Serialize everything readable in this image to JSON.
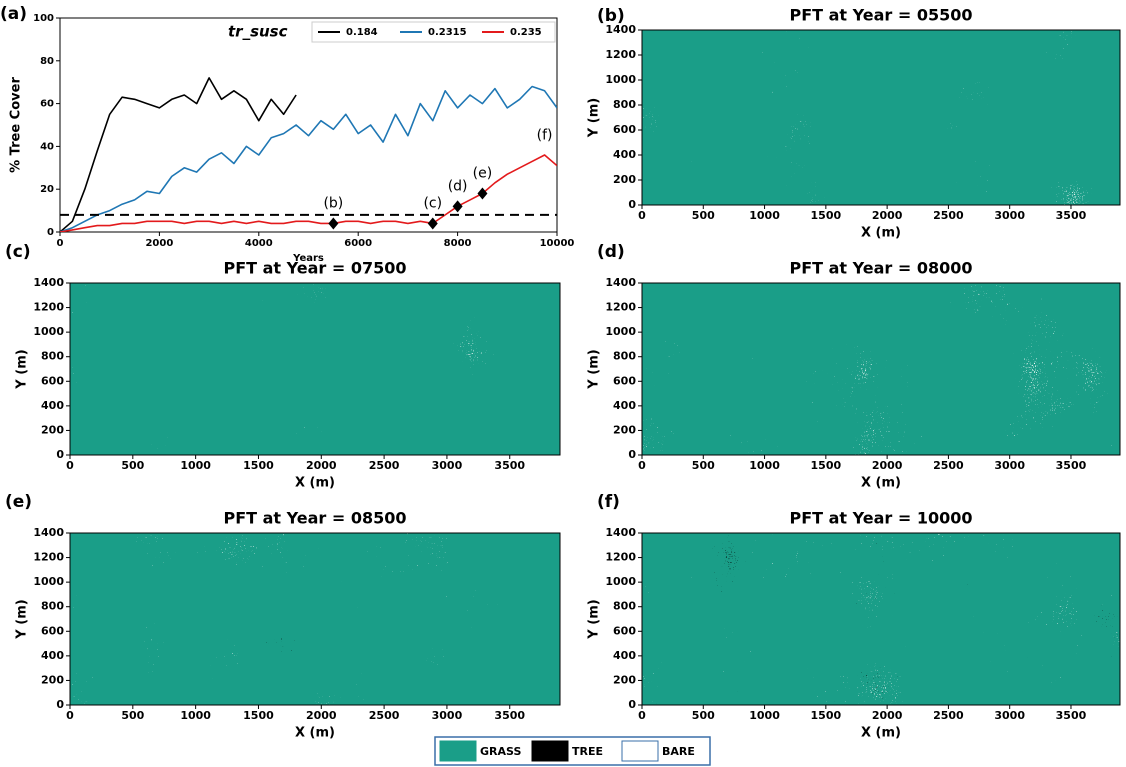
{
  "chart_data": [
    {
      "type": "line",
      "panel_label": "(a)",
      "xlabel": "Years",
      "ylabel": "% Tree Cover",
      "xlim": [
        0,
        10000
      ],
      "xticks": [
        0,
        2000,
        4000,
        6000,
        8000,
        10000
      ],
      "ylim": [
        0,
        100
      ],
      "yticks": [
        0,
        20,
        40,
        60,
        80,
        100
      ],
      "legend_title": "tr_susc",
      "x": [
        0,
        250,
        500,
        750,
        1000,
        1250,
        1500,
        1750,
        2000,
        2250,
        2500,
        2750,
        3000,
        3250,
        3500,
        3750,
        4000,
        4250,
        4500,
        4750,
        5000,
        5250,
        5500,
        5750,
        6000,
        6250,
        6500,
        6750,
        7000,
        7250,
        7500,
        7750,
        8000,
        8250,
        8500,
        8750,
        9000,
        9250,
        9500,
        9750,
        10000
      ],
      "series": [
        {
          "name": "0.184",
          "color": "#000000",
          "values": [
            0,
            5,
            20,
            38,
            55,
            63,
            62,
            60,
            58,
            62,
            64,
            60,
            72,
            62,
            66,
            62,
            52,
            62,
            55,
            64,
            null,
            null,
            null,
            null,
            null,
            null,
            null,
            null,
            null,
            null,
            null,
            null,
            null,
            null,
            null,
            null,
            null,
            null,
            null,
            null,
            null
          ]
        },
        {
          "name": "0.2315",
          "color": "#1f77b4",
          "values": [
            0,
            2,
            5,
            8,
            10,
            13,
            15,
            19,
            18,
            26,
            30,
            28,
            34,
            37,
            32,
            40,
            36,
            44,
            46,
            50,
            45,
            52,
            48,
            55,
            46,
            50,
            42,
            55,
            45,
            60,
            52,
            66,
            58,
            64,
            60,
            67,
            58,
            62,
            68,
            66,
            58
          ]
        },
        {
          "name": "0.235",
          "color": "#e31a1c",
          "values": [
            0,
            1,
            2,
            3,
            3,
            4,
            4,
            5,
            5,
            5,
            4,
            5,
            5,
            4,
            5,
            4,
            5,
            4,
            4,
            5,
            5,
            4,
            4,
            5,
            5,
            4,
            5,
            5,
            4,
            5,
            4,
            8,
            12,
            15,
            18,
            23,
            27,
            30,
            33,
            36,
            31
          ]
        }
      ],
      "hline": 8,
      "markers": [
        {
          "x": 5500,
          "y": 4,
          "label": "(b)"
        },
        {
          "x": 7500,
          "y": 4,
          "label": "(c)"
        },
        {
          "x": 8000,
          "y": 12,
          "label": "(d)"
        },
        {
          "x": 8500,
          "y": 18,
          "label": "(e)"
        }
      ],
      "annotations": [
        {
          "text": "(f)",
          "x": 9750,
          "y": 45
        }
      ]
    },
    {
      "type": "map",
      "panel_label": "(b)",
      "title": "PFT at Year = 05500",
      "xlabel": "X (m)",
      "ylabel": "Y (m)",
      "xlim": [
        0,
        3900
      ],
      "xticks": [
        0,
        500,
        1000,
        1500,
        2000,
        2500,
        3000,
        3500
      ],
      "ylim": [
        0,
        1400
      ],
      "yticks": [
        0,
        200,
        400,
        600,
        800,
        1000,
        1200,
        1400
      ]
    },
    {
      "type": "map",
      "panel_label": "(c)",
      "title": "PFT at Year = 07500",
      "xlabel": "X (m)",
      "ylabel": "Y (m)",
      "xlim": [
        0,
        3900
      ],
      "xticks": [
        0,
        500,
        1000,
        1500,
        2000,
        2500,
        3000,
        3500
      ],
      "ylim": [
        0,
        1400
      ],
      "yticks": [
        0,
        200,
        400,
        600,
        800,
        1000,
        1200,
        1400
      ]
    },
    {
      "type": "map",
      "panel_label": "(d)",
      "title": "PFT at Year = 08000",
      "xlabel": "X (m)",
      "ylabel": "Y (m)",
      "xlim": [
        0,
        3900
      ],
      "xticks": [
        0,
        500,
        1000,
        1500,
        2000,
        2500,
        3000,
        3500
      ],
      "ylim": [
        0,
        1400
      ],
      "yticks": [
        0,
        200,
        400,
        600,
        800,
        1000,
        1200,
        1400
      ]
    },
    {
      "type": "map",
      "panel_label": "(e)",
      "title": "PFT at Year = 08500",
      "xlabel": "X (m)",
      "ylabel": "Y (m)",
      "xlim": [
        0,
        3900
      ],
      "xticks": [
        0,
        500,
        1000,
        1500,
        2000,
        2500,
        3000,
        3500
      ],
      "ylim": [
        0,
        1400
      ],
      "yticks": [
        0,
        200,
        400,
        600,
        800,
        1000,
        1200,
        1400
      ]
    },
    {
      "type": "map",
      "panel_label": "(f)",
      "title": "PFT at Year = 10000",
      "xlabel": "X (m)",
      "ylabel": "Y (m)",
      "xlim": [
        0,
        3900
      ],
      "xticks": [
        0,
        500,
        1000,
        1500,
        2000,
        2500,
        3000,
        3500
      ],
      "ylim": [
        0,
        1400
      ],
      "yticks": [
        0,
        200,
        400,
        600,
        800,
        1000,
        1200,
        1400
      ]
    }
  ],
  "legend": {
    "items": [
      {
        "name": "GRASS",
        "color": "#1a9e88"
      },
      {
        "name": "TREE",
        "color": "#000000"
      },
      {
        "name": "BARE",
        "color": "#ffffff"
      }
    ]
  }
}
